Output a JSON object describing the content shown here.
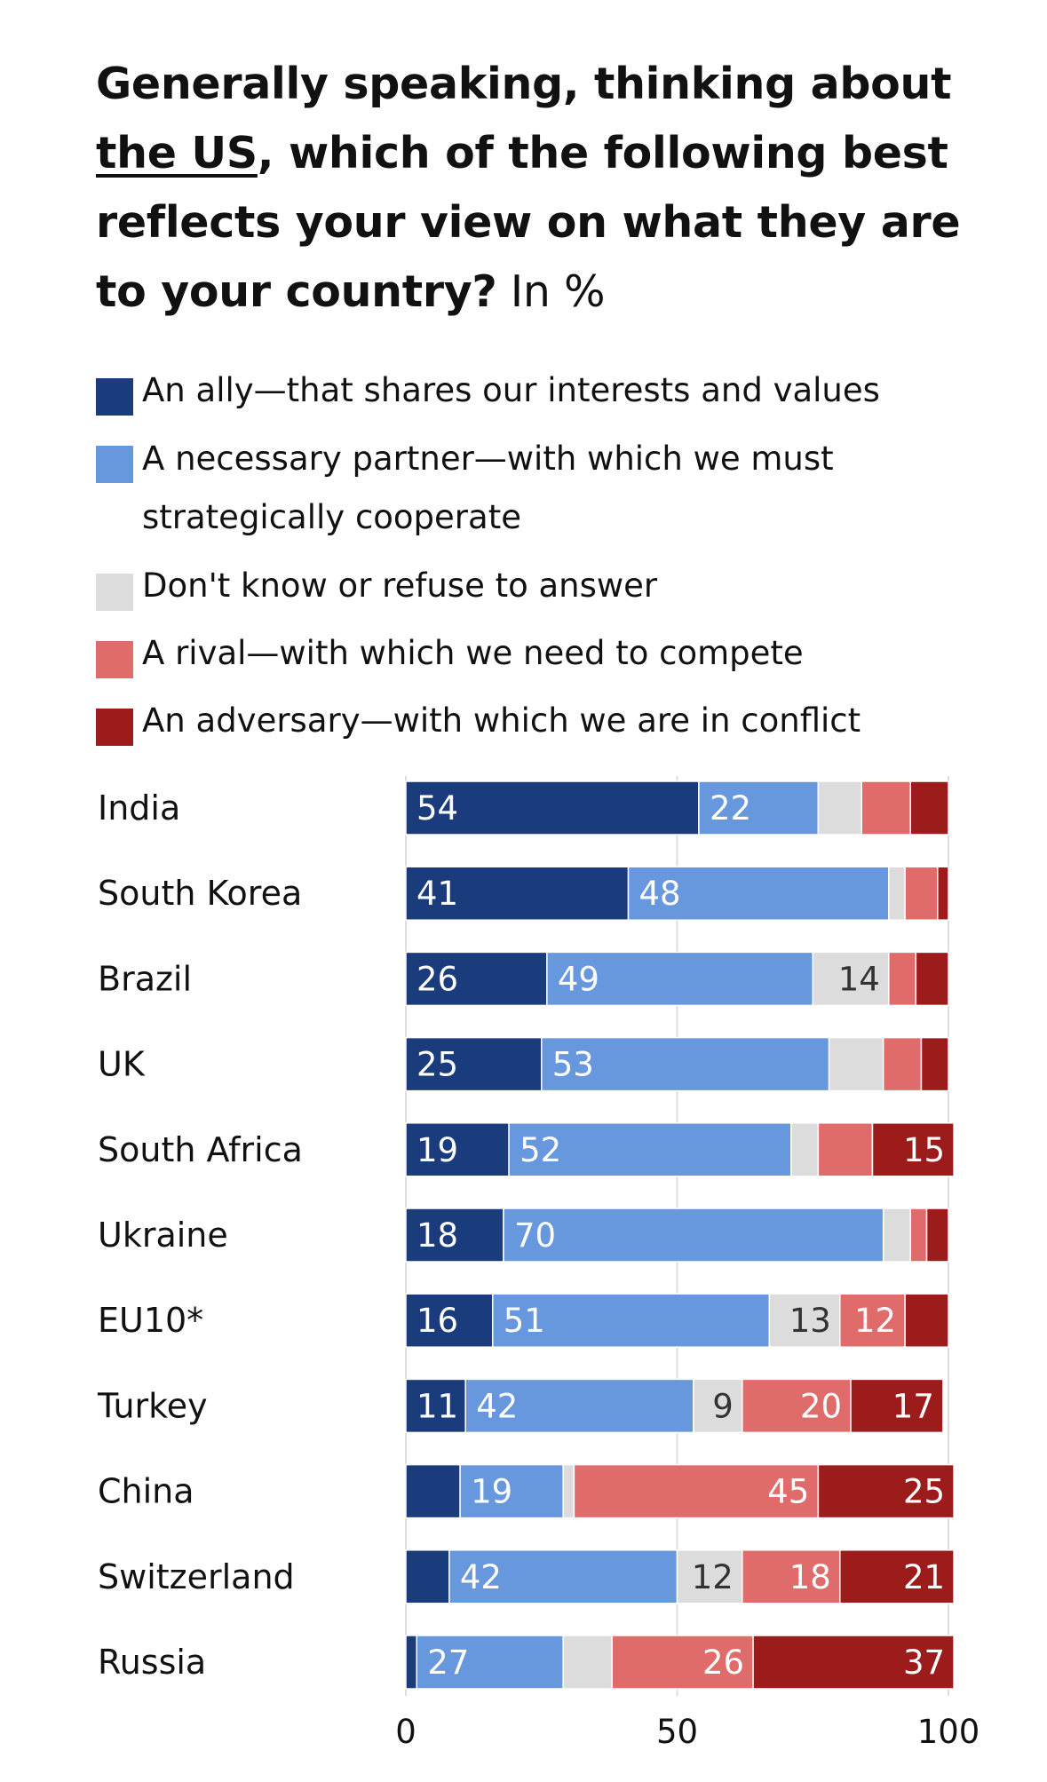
{
  "title": {
    "part1": "Generally speaking, thinking about",
    "underlined": "the US",
    "part2": ", which of the following best reflects your view on what they are to your country?",
    "unit": " In %"
  },
  "legend": [
    {
      "label": "An ally—that shares our interests and values",
      "color": "#1b3c7c"
    },
    {
      "label": "A necessary partner—with which we must strategically cooperate",
      "color": "#6797dc"
    },
    {
      "label": "Don't know or refuse to answer",
      "color": "#dcdcdc"
    },
    {
      "label": "A rival—with which we need to compete",
      "color": "#e06b6b"
    },
    {
      "label": "An adversary—with which we are in conflict",
      "color": "#9c1c1c"
    }
  ],
  "chart_data": {
    "type": "bar",
    "orientation": "horizontal",
    "stacked": true,
    "title": "Generally speaking, thinking about the US, which of the following best reflects your view on what they are to your country?",
    "unit": "In %",
    "categories": [
      "India",
      "South Korea",
      "Brazil",
      "UK",
      "South Africa",
      "Ukraine",
      "EU10*",
      "Turkey",
      "China",
      "Switzerland",
      "Russia"
    ],
    "series": [
      {
        "name": "An ally—that shares our interests and values",
        "color": "#1b3c7c",
        "text_color": "#ffffff",
        "values": [
          54,
          41,
          26,
          25,
          19,
          18,
          16,
          11,
          10,
          8,
          2
        ],
        "labels": [
          "54",
          "41",
          "26",
          "25",
          "19",
          "18",
          "16",
          "11",
          "",
          "",
          ""
        ]
      },
      {
        "name": "A necessary partner—with which we must strategically cooperate",
        "color": "#6797dc",
        "text_color": "#ffffff",
        "values": [
          22,
          48,
          49,
          53,
          52,
          70,
          51,
          42,
          19,
          42,
          27
        ],
        "labels": [
          "22",
          "48",
          "49",
          "53",
          "52",
          "70",
          "51",
          "42",
          "19",
          "42",
          "27"
        ]
      },
      {
        "name": "Don't know or refuse to answer",
        "color": "#dcdcdc",
        "text_color": "#333333",
        "values": [
          8,
          3,
          14,
          10,
          5,
          5,
          13,
          9,
          2,
          12,
          9
        ],
        "labels": [
          "",
          "",
          "14",
          "",
          "",
          "",
          "13",
          "9",
          "",
          "12",
          ""
        ]
      },
      {
        "name": "A rival—with which we need to compete",
        "color": "#e06b6b",
        "text_color": "#ffffff",
        "values": [
          9,
          6,
          5,
          7,
          10,
          3,
          12,
          20,
          45,
          18,
          26
        ],
        "labels": [
          "",
          "",
          "",
          "",
          "",
          "",
          "12",
          "20",
          "45",
          "18",
          "26"
        ]
      },
      {
        "name": "An adversary—with which we are in conflict",
        "color": "#9c1c1c",
        "text_color": "#ffffff",
        "values": [
          7,
          2,
          6,
          5,
          15,
          4,
          8,
          17,
          25,
          21,
          37
        ],
        "labels": [
          "",
          "",
          "",
          "",
          "15",
          "",
          "",
          "17",
          "25",
          "21",
          "37"
        ]
      }
    ],
    "xlim": [
      0,
      100
    ],
    "xticks": [
      "0",
      "50",
      "100"
    ],
    "grid": true,
    "legend_position": "top"
  }
}
